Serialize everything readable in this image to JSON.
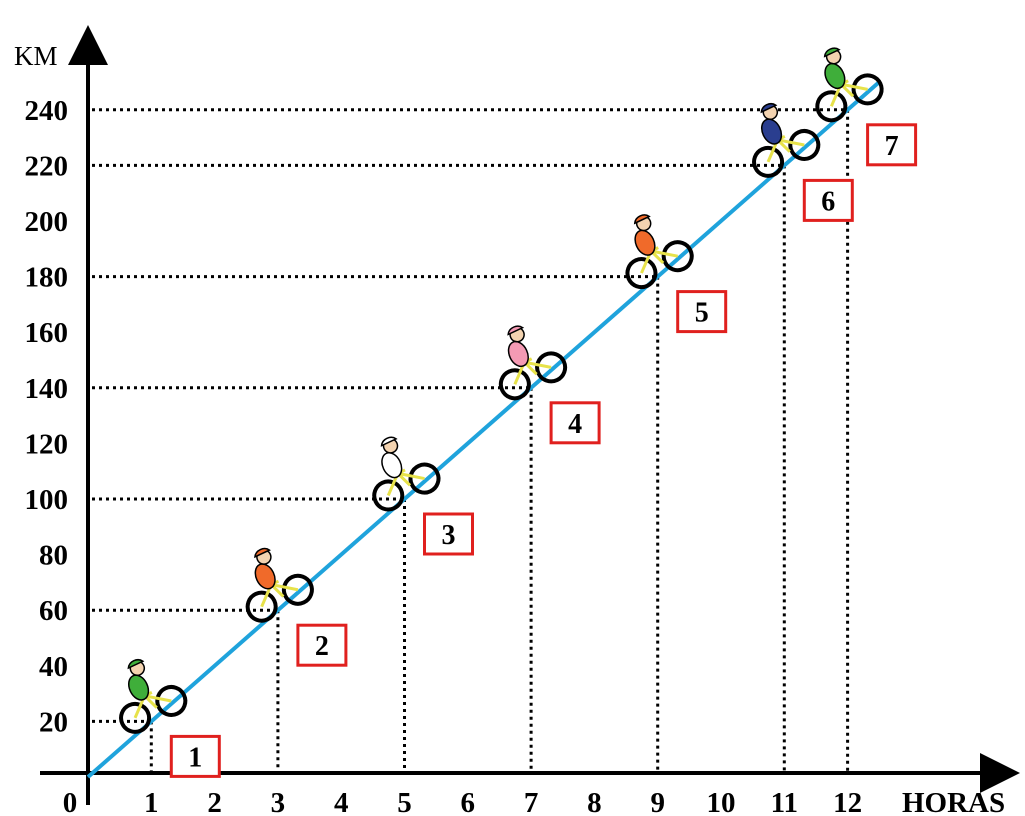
{
  "chart_data": {
    "type": "line",
    "title": "",
    "xlabel": "HORAS",
    "ylabel": "KM",
    "origin_label": "0",
    "x_ticks": [
      1,
      2,
      3,
      4,
      5,
      6,
      7,
      8,
      9,
      10,
      11,
      12
    ],
    "y_ticks": [
      20,
      40,
      60,
      80,
      100,
      120,
      140,
      160,
      180,
      200,
      220,
      240
    ],
    "xlim": [
      0,
      13
    ],
    "ylim": [
      0,
      255
    ],
    "line": {
      "x": [
        0,
        12.5
      ],
      "y": [
        0,
        250
      ],
      "color": "#1fa3dc"
    },
    "points": [
      {
        "label": "1",
        "x": 1,
        "y": 20
      },
      {
        "label": "2",
        "x": 3,
        "y": 60
      },
      {
        "label": "3",
        "x": 5,
        "y": 100
      },
      {
        "label": "4",
        "x": 7,
        "y": 140
      },
      {
        "label": "5",
        "x": 9,
        "y": 180
      },
      {
        "label": "6",
        "x": 11,
        "y": 220
      },
      {
        "label": "7",
        "x": 12,
        "y": 240
      }
    ],
    "grid": false,
    "guide_lines": "dotted",
    "box_color": "#e0201e",
    "cyclist_colors": [
      "#3fae3a",
      "#f06a2a",
      "#ffffff",
      "#f49ab4",
      "#f06a2a",
      "#2a3e8f",
      "#3fae3a"
    ]
  }
}
